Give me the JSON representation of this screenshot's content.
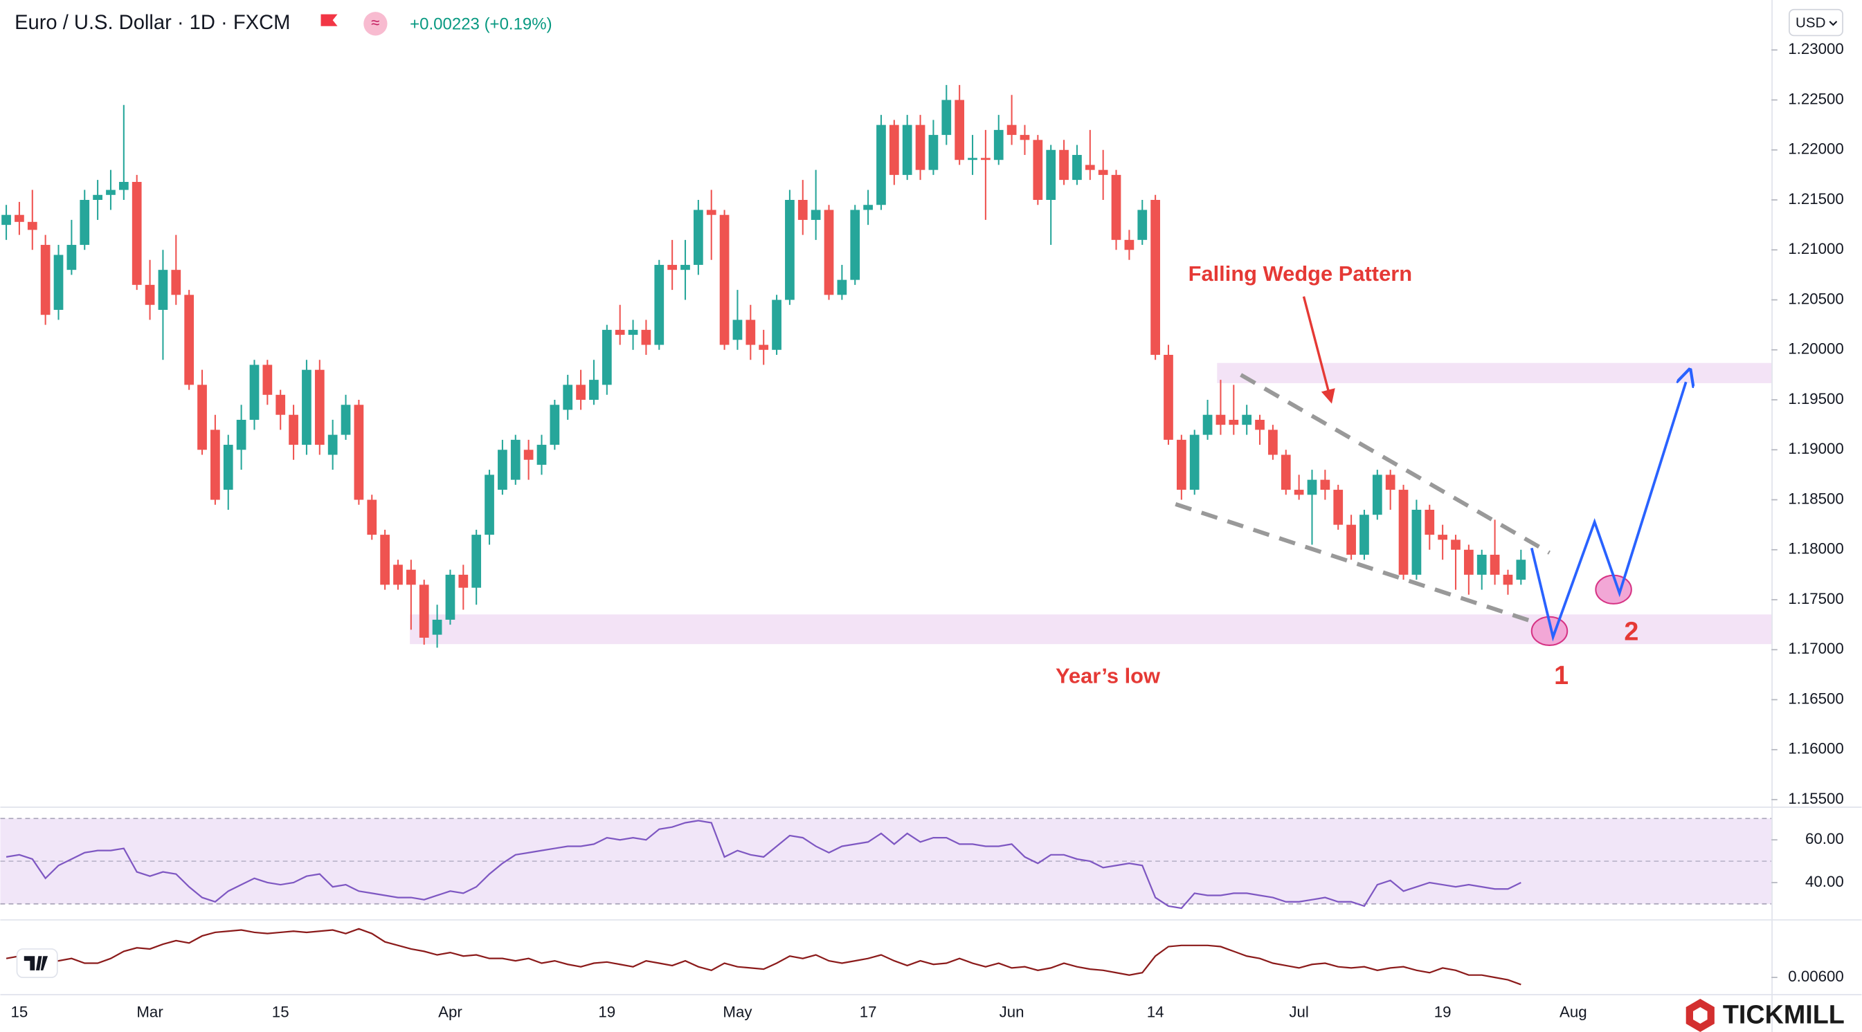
{
  "header": {
    "title": "Euro / U.S. Dollar · 1D · FXCM",
    "change": "+0.00223 (+0.19%)",
    "currency": "USD",
    "brand": "TICKMILL"
  },
  "chart_data": [
    {
      "type": "candlestick",
      "annotations": [
        "Falling Wedge Pattern",
        "Year’s low",
        "1",
        "2"
      ],
      "up_color": "#26a69a",
      "down_color": "#ef5350",
      "ylim": [
        1.1543,
        1.235
      ],
      "yticks": [
        {
          "value": 1.155,
          "label": "1.15500"
        },
        {
          "value": 1.16,
          "label": "1.16000"
        },
        {
          "value": 1.165,
          "label": "1.16500"
        },
        {
          "value": 1.17,
          "label": "1.17000"
        },
        {
          "value": 1.175,
          "label": "1.17500"
        },
        {
          "value": 1.18,
          "label": "1.18000"
        },
        {
          "value": 1.185,
          "label": "1.18500"
        },
        {
          "value": 1.19,
          "label": "1.19000"
        },
        {
          "value": 1.195,
          "label": "1.19500"
        },
        {
          "value": 1.2,
          "label": "1.20000"
        },
        {
          "value": 1.205,
          "label": "1.20500"
        },
        {
          "value": 1.21,
          "label": "1.21000"
        },
        {
          "value": 1.215,
          "label": "1.21500"
        },
        {
          "value": 1.22,
          "label": "1.22000"
        },
        {
          "value": 1.225,
          "label": "1.22500"
        },
        {
          "value": 1.23,
          "label": "1.23000"
        }
      ],
      "categories": [
        null,
        "15",
        null,
        null,
        null,
        null,
        null,
        null,
        null,
        null,
        null,
        "Mar",
        null,
        null,
        null,
        null,
        null,
        null,
        null,
        null,
        null,
        "15",
        null,
        null,
        null,
        null,
        null,
        null,
        null,
        null,
        null,
        null,
        null,
        null,
        "Apr",
        null,
        null,
        null,
        null,
        null,
        null,
        null,
        null,
        null,
        null,
        null,
        "19",
        null,
        null,
        null,
        null,
        null,
        null,
        null,
        null,
        null,
        "May",
        null,
        null,
        null,
        null,
        null,
        null,
        null,
        null,
        null,
        "17",
        null,
        null,
        null,
        null,
        null,
        null,
        null,
        null,
        null,
        null,
        "Jun",
        null,
        null,
        null,
        null,
        null,
        null,
        null,
        null,
        null,
        null,
        "14",
        null,
        null,
        null,
        null,
        null,
        null,
        null,
        null,
        null,
        null,
        "Jul",
        null,
        null,
        null,
        null,
        null,
        null,
        null,
        null,
        null,
        null,
        "19",
        null,
        null,
        null,
        null,
        null,
        null,
        null,
        null,
        null,
        "Aug",
        null,
        null,
        null,
        null,
        null,
        null,
        null,
        null,
        null,
        null
      ],
      "open": [
        1.2125,
        1.2135,
        1.2128,
        1.2105,
        1.204,
        1.208,
        1.2105,
        1.215,
        1.2155,
        1.216,
        1.2168,
        1.2065,
        1.204,
        1.208,
        1.2055,
        1.1965,
        1.192,
        1.186,
        1.19,
        1.193,
        1.1985,
        1.1955,
        1.1935,
        1.1905,
        1.198,
        1.1895,
        1.1915,
        1.1945,
        1.185,
        1.1815,
        1.1785,
        1.178,
        1.1765,
        1.1715,
        1.173,
        1.1775,
        1.1762,
        1.1815,
        1.186,
        1.187,
        1.19,
        1.1885,
        1.1905,
        1.194,
        1.1965,
        1.195,
        1.1965,
        1.202,
        1.2015,
        1.202,
        1.2005,
        1.2085,
        1.208,
        1.2085,
        1.214,
        1.2135,
        1.201,
        1.203,
        1.2005,
        1.2,
        1.205,
        1.215,
        1.213,
        1.214,
        1.2055,
        1.207,
        1.214,
        1.2145,
        1.2225,
        1.2175,
        1.2225,
        1.218,
        1.2215,
        1.225,
        1.219,
        1.2192,
        1.219,
        1.2225,
        1.2215,
        1.221,
        1.215,
        1.22,
        1.217,
        1.2185,
        1.218,
        1.2175,
        1.211,
        1.211,
        1.215,
        1.1995,
        1.191,
        1.186,
        1.1915,
        1.1935,
        1.193,
        1.1925,
        1.193,
        1.192,
        1.1895,
        1.186,
        1.1855,
        1.187,
        1.186,
        1.1825,
        1.1795,
        1.1835,
        1.1875,
        1.186,
        1.1775,
        1.184,
        1.1815,
        1.181,
        1.18,
        1.1775,
        1.1795,
        1.1775,
        1.177,
        null,
        null,
        null,
        null,
        null,
        null,
        null,
        null,
        null,
        null,
        null,
        null,
        null,
        null
      ],
      "high": [
        1.2145,
        1.2148,
        1.216,
        1.2115,
        1.2105,
        1.213,
        1.216,
        1.217,
        1.218,
        1.2245,
        1.2175,
        1.209,
        1.21,
        1.2115,
        1.206,
        1.198,
        1.1935,
        1.1915,
        1.1945,
        1.199,
        1.199,
        1.196,
        1.1945,
        1.199,
        1.199,
        1.193,
        1.1955,
        1.195,
        1.1855,
        1.182,
        1.179,
        1.179,
        1.177,
        1.1745,
        1.178,
        1.1785,
        1.182,
        1.188,
        1.191,
        1.1915,
        1.191,
        1.1915,
        1.195,
        1.1975,
        1.198,
        1.199,
        1.2025,
        1.2045,
        1.203,
        1.203,
        1.209,
        1.211,
        1.211,
        1.215,
        1.216,
        1.214,
        1.206,
        1.2045,
        1.202,
        1.2055,
        1.216,
        1.217,
        1.218,
        1.2145,
        1.2085,
        1.2145,
        1.216,
        1.2235,
        1.223,
        1.2235,
        1.2235,
        1.223,
        1.2265,
        1.2265,
        1.2215,
        1.222,
        1.2235,
        1.2255,
        1.2225,
        1.2215,
        1.2205,
        1.221,
        1.2205,
        1.222,
        1.22,
        1.218,
        1.212,
        1.215,
        1.2155,
        1.2005,
        1.1915,
        1.192,
        1.195,
        1.197,
        1.1965,
        1.1945,
        1.1935,
        1.1925,
        1.19,
        1.1875,
        1.188,
        1.188,
        1.1865,
        1.1835,
        1.184,
        1.188,
        1.188,
        1.1865,
        1.185,
        1.1845,
        1.1825,
        1.1815,
        1.1805,
        1.18,
        1.183,
        1.178,
        1.18,
        null,
        null,
        null,
        null,
        null,
        null,
        null,
        null,
        null,
        null,
        null,
        null,
        null,
        null
      ],
      "low": [
        1.211,
        1.2115,
        1.21,
        1.2025,
        1.203,
        1.2075,
        1.21,
        1.213,
        1.214,
        1.215,
        1.206,
        1.203,
        1.199,
        1.2045,
        1.196,
        1.1895,
        1.1845,
        1.184,
        1.188,
        1.192,
        1.1945,
        1.192,
        1.189,
        1.1895,
        1.1895,
        1.188,
        1.191,
        1.1845,
        1.181,
        1.176,
        1.176,
        1.172,
        1.1705,
        1.1702,
        1.1725,
        1.174,
        1.1745,
        1.1805,
        1.1855,
        1.1865,
        1.187,
        1.1875,
        1.19,
        1.193,
        1.194,
        1.1945,
        1.1955,
        1.2005,
        1.2,
        1.1995,
        1.2,
        1.206,
        1.205,
        1.2075,
        1.209,
        1.2,
        1.2,
        1.199,
        1.1985,
        1.1995,
        1.2045,
        1.2115,
        1.211,
        1.205,
        1.205,
        1.2065,
        1.2125,
        1.214,
        1.2165,
        1.217,
        1.217,
        1.2175,
        1.2205,
        1.2185,
        1.2175,
        1.213,
        1.2185,
        1.2205,
        1.2195,
        1.2145,
        1.2105,
        1.2165,
        1.2165,
        1.217,
        1.215,
        1.21,
        1.209,
        1.2105,
        1.199,
        1.1905,
        1.185,
        1.1855,
        1.191,
        1.1915,
        1.1915,
        1.1915,
        1.1905,
        1.189,
        1.1855,
        1.185,
        1.1805,
        1.185,
        1.182,
        1.179,
        1.179,
        1.183,
        1.184,
        1.177,
        1.177,
        1.18,
        1.179,
        1.176,
        1.1755,
        1.176,
        1.1765,
        1.1755,
        1.1765,
        null,
        null,
        null,
        null,
        null,
        null,
        null,
        null,
        null,
        null,
        null,
        null,
        null,
        null
      ],
      "close": [
        1.2135,
        1.2128,
        1.212,
        1.2035,
        1.2095,
        1.2105,
        1.215,
        1.2155,
        1.216,
        1.2168,
        1.2065,
        1.2045,
        1.208,
        1.2055,
        1.1965,
        1.19,
        1.185,
        1.1905,
        1.193,
        1.1985,
        1.1955,
        1.1935,
        1.1905,
        1.198,
        1.1905,
        1.1915,
        1.1945,
        1.185,
        1.1815,
        1.1765,
        1.1765,
        1.1765,
        1.1712,
        1.173,
        1.1775,
        1.1762,
        1.1815,
        1.1875,
        1.19,
        1.191,
        1.189,
        1.1905,
        1.1945,
        1.1965,
        1.195,
        1.197,
        1.202,
        1.2015,
        1.202,
        1.2005,
        1.2085,
        1.208,
        1.2085,
        1.214,
        1.2135,
        1.2005,
        1.203,
        1.2005,
        1.2,
        1.205,
        1.215,
        1.213,
        1.214,
        1.2055,
        1.207,
        1.214,
        1.2145,
        1.2225,
        1.2175,
        1.2225,
        1.218,
        1.2215,
        1.225,
        1.219,
        1.2192,
        1.219,
        1.222,
        1.2215,
        1.221,
        1.215,
        1.22,
        1.217,
        1.2195,
        1.218,
        1.2175,
        1.211,
        1.21,
        1.214,
        1.1995,
        1.191,
        1.186,
        1.1915,
        1.1935,
        1.1925,
        1.1925,
        1.1935,
        1.192,
        1.1895,
        1.186,
        1.1855,
        1.187,
        1.186,
        1.1825,
        1.1795,
        1.1835,
        1.1875,
        1.186,
        1.1775,
        1.184,
        1.1815,
        1.181,
        1.18,
        1.1775,
        1.1795,
        1.1775,
        1.1765,
        1.179,
        null,
        null,
        null,
        null,
        null,
        null,
        null,
        null,
        null,
        null,
        null,
        null,
        null,
        null
      ]
    },
    {
      "type": "line",
      "color": "#7e57c2",
      "ylim": [
        22.8,
        75.0
      ],
      "yticks": [
        {
          "value": 40,
          "label": "40.00"
        },
        {
          "value": 60,
          "label": "60.00"
        }
      ],
      "values": [
        52,
        53,
        51,
        42,
        48,
        51,
        54,
        55,
        55,
        56,
        45,
        43,
        45,
        44,
        38,
        33,
        31,
        36,
        39,
        42,
        40,
        39,
        40,
        43,
        44,
        38,
        39,
        36,
        35,
        34,
        33,
        33,
        32,
        34,
        36,
        35,
        38,
        44,
        49,
        53,
        54,
        55,
        56,
        57,
        57,
        58,
        61,
        60,
        61,
        60,
        65,
        66,
        68,
        69,
        68,
        52,
        55,
        53,
        52,
        57,
        62,
        61,
        57,
        54,
        57,
        58,
        59,
        63,
        58,
        63,
        59,
        61,
        61,
        58,
        58,
        57,
        57,
        58,
        52,
        49,
        53,
        53,
        51,
        50,
        47,
        48,
        49,
        48,
        33,
        29,
        28,
        35,
        34,
        34,
        35,
        35,
        34,
        33,
        31,
        31,
        32,
        33,
        31,
        31,
        29,
        39,
        41,
        36,
        38,
        40,
        39,
        38,
        39,
        38,
        37,
        37,
        40
      ]
    },
    {
      "type": "line",
      "color": "#8b1a1a",
      "ylim": [
        0.0046,
        0.0108
      ],
      "yticks": [
        {
          "value": 0.006,
          "label": "0.00600"
        }
      ],
      "values": [
        0.0076,
        0.0078,
        0.0076,
        0.0073,
        0.0074,
        0.0076,
        0.0072,
        0.0072,
        0.0076,
        0.0082,
        0.0085,
        0.0084,
        0.0088,
        0.0091,
        0.0089,
        0.0095,
        0.0098,
        0.0099,
        0.01,
        0.0098,
        0.0097,
        0.0098,
        0.0099,
        0.0098,
        0.0099,
        0.01,
        0.0097,
        0.0101,
        0.0097,
        0.009,
        0.0087,
        0.0084,
        0.0082,
        0.0079,
        0.0081,
        0.0078,
        0.0079,
        0.0076,
        0.0076,
        0.0074,
        0.0076,
        0.0072,
        0.0074,
        0.0071,
        0.0069,
        0.0072,
        0.0073,
        0.0071,
        0.0069,
        0.0074,
        0.0072,
        0.007,
        0.0074,
        0.0069,
        0.0066,
        0.0072,
        0.0069,
        0.0068,
        0.0067,
        0.0072,
        0.0078,
        0.0076,
        0.0079,
        0.0074,
        0.0072,
        0.0074,
        0.0076,
        0.0079,
        0.0074,
        0.007,
        0.0074,
        0.0071,
        0.0072,
        0.0076,
        0.0072,
        0.0069,
        0.0072,
        0.0068,
        0.0069,
        0.0066,
        0.0068,
        0.0072,
        0.0069,
        0.0067,
        0.0066,
        0.0064,
        0.0062,
        0.0064,
        0.0078,
        0.0086,
        0.0087,
        0.0087,
        0.0087,
        0.0086,
        0.0082,
        0.0078,
        0.0076,
        0.0072,
        0.007,
        0.0068,
        0.0071,
        0.0072,
        0.0069,
        0.0068,
        0.0069,
        0.0066,
        0.0068,
        0.0069,
        0.0066,
        0.0064,
        0.0068,
        0.0066,
        0.0062,
        0.0062,
        0.006,
        0.0058,
        0.0054
      ]
    }
  ]
}
